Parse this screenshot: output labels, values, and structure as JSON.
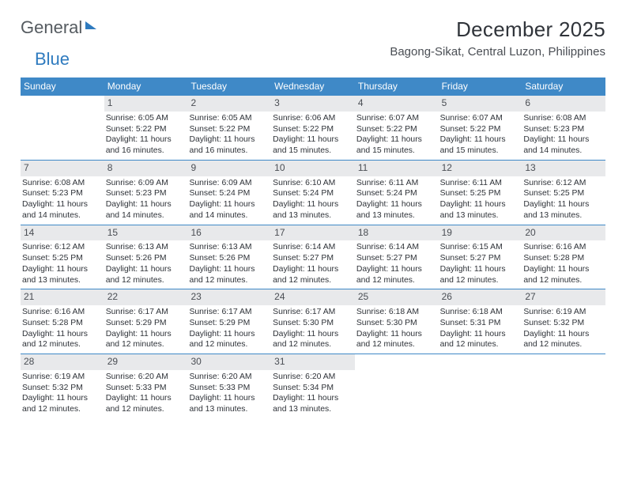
{
  "brand": {
    "word1": "General",
    "word2": "Blue"
  },
  "title": "December 2025",
  "location": "Bagong-Sikat, Central Luzon, Philippines",
  "colors": {
    "header_bg": "#3f89c7",
    "header_text": "#ffffff",
    "daynum_bg": "#e8e9eb",
    "daynum_text": "#4a4e54",
    "body_text": "#2e3238",
    "rule": "#3f89c7",
    "brand_gray": "#555b60",
    "brand_blue": "#2f7bbf",
    "page_bg": "#ffffff"
  },
  "day_names": [
    "Sunday",
    "Monday",
    "Tuesday",
    "Wednesday",
    "Thursday",
    "Friday",
    "Saturday"
  ],
  "weeks": [
    [
      {
        "n": "",
        "sr": "",
        "ss": "",
        "dl": ""
      },
      {
        "n": "1",
        "sr": "Sunrise: 6:05 AM",
        "ss": "Sunset: 5:22 PM",
        "dl": "Daylight: 11 hours and 16 minutes."
      },
      {
        "n": "2",
        "sr": "Sunrise: 6:05 AM",
        "ss": "Sunset: 5:22 PM",
        "dl": "Daylight: 11 hours and 16 minutes."
      },
      {
        "n": "3",
        "sr": "Sunrise: 6:06 AM",
        "ss": "Sunset: 5:22 PM",
        "dl": "Daylight: 11 hours and 15 minutes."
      },
      {
        "n": "4",
        "sr": "Sunrise: 6:07 AM",
        "ss": "Sunset: 5:22 PM",
        "dl": "Daylight: 11 hours and 15 minutes."
      },
      {
        "n": "5",
        "sr": "Sunrise: 6:07 AM",
        "ss": "Sunset: 5:22 PM",
        "dl": "Daylight: 11 hours and 15 minutes."
      },
      {
        "n": "6",
        "sr": "Sunrise: 6:08 AM",
        "ss": "Sunset: 5:23 PM",
        "dl": "Daylight: 11 hours and 14 minutes."
      }
    ],
    [
      {
        "n": "7",
        "sr": "Sunrise: 6:08 AM",
        "ss": "Sunset: 5:23 PM",
        "dl": "Daylight: 11 hours and 14 minutes."
      },
      {
        "n": "8",
        "sr": "Sunrise: 6:09 AM",
        "ss": "Sunset: 5:23 PM",
        "dl": "Daylight: 11 hours and 14 minutes."
      },
      {
        "n": "9",
        "sr": "Sunrise: 6:09 AM",
        "ss": "Sunset: 5:24 PM",
        "dl": "Daylight: 11 hours and 14 minutes."
      },
      {
        "n": "10",
        "sr": "Sunrise: 6:10 AM",
        "ss": "Sunset: 5:24 PM",
        "dl": "Daylight: 11 hours and 13 minutes."
      },
      {
        "n": "11",
        "sr": "Sunrise: 6:11 AM",
        "ss": "Sunset: 5:24 PM",
        "dl": "Daylight: 11 hours and 13 minutes."
      },
      {
        "n": "12",
        "sr": "Sunrise: 6:11 AM",
        "ss": "Sunset: 5:25 PM",
        "dl": "Daylight: 11 hours and 13 minutes."
      },
      {
        "n": "13",
        "sr": "Sunrise: 6:12 AM",
        "ss": "Sunset: 5:25 PM",
        "dl": "Daylight: 11 hours and 13 minutes."
      }
    ],
    [
      {
        "n": "14",
        "sr": "Sunrise: 6:12 AM",
        "ss": "Sunset: 5:25 PM",
        "dl": "Daylight: 11 hours and 13 minutes."
      },
      {
        "n": "15",
        "sr": "Sunrise: 6:13 AM",
        "ss": "Sunset: 5:26 PM",
        "dl": "Daylight: 11 hours and 12 minutes."
      },
      {
        "n": "16",
        "sr": "Sunrise: 6:13 AM",
        "ss": "Sunset: 5:26 PM",
        "dl": "Daylight: 11 hours and 12 minutes."
      },
      {
        "n": "17",
        "sr": "Sunrise: 6:14 AM",
        "ss": "Sunset: 5:27 PM",
        "dl": "Daylight: 11 hours and 12 minutes."
      },
      {
        "n": "18",
        "sr": "Sunrise: 6:14 AM",
        "ss": "Sunset: 5:27 PM",
        "dl": "Daylight: 11 hours and 12 minutes."
      },
      {
        "n": "19",
        "sr": "Sunrise: 6:15 AM",
        "ss": "Sunset: 5:27 PM",
        "dl": "Daylight: 11 hours and 12 minutes."
      },
      {
        "n": "20",
        "sr": "Sunrise: 6:16 AM",
        "ss": "Sunset: 5:28 PM",
        "dl": "Daylight: 11 hours and 12 minutes."
      }
    ],
    [
      {
        "n": "21",
        "sr": "Sunrise: 6:16 AM",
        "ss": "Sunset: 5:28 PM",
        "dl": "Daylight: 11 hours and 12 minutes."
      },
      {
        "n": "22",
        "sr": "Sunrise: 6:17 AM",
        "ss": "Sunset: 5:29 PM",
        "dl": "Daylight: 11 hours and 12 minutes."
      },
      {
        "n": "23",
        "sr": "Sunrise: 6:17 AM",
        "ss": "Sunset: 5:29 PM",
        "dl": "Daylight: 11 hours and 12 minutes."
      },
      {
        "n": "24",
        "sr": "Sunrise: 6:17 AM",
        "ss": "Sunset: 5:30 PM",
        "dl": "Daylight: 11 hours and 12 minutes."
      },
      {
        "n": "25",
        "sr": "Sunrise: 6:18 AM",
        "ss": "Sunset: 5:30 PM",
        "dl": "Daylight: 11 hours and 12 minutes."
      },
      {
        "n": "26",
        "sr": "Sunrise: 6:18 AM",
        "ss": "Sunset: 5:31 PM",
        "dl": "Daylight: 11 hours and 12 minutes."
      },
      {
        "n": "27",
        "sr": "Sunrise: 6:19 AM",
        "ss": "Sunset: 5:32 PM",
        "dl": "Daylight: 11 hours and 12 minutes."
      }
    ],
    [
      {
        "n": "28",
        "sr": "Sunrise: 6:19 AM",
        "ss": "Sunset: 5:32 PM",
        "dl": "Daylight: 11 hours and 12 minutes."
      },
      {
        "n": "29",
        "sr": "Sunrise: 6:20 AM",
        "ss": "Sunset: 5:33 PM",
        "dl": "Daylight: 11 hours and 12 minutes."
      },
      {
        "n": "30",
        "sr": "Sunrise: 6:20 AM",
        "ss": "Sunset: 5:33 PM",
        "dl": "Daylight: 11 hours and 13 minutes."
      },
      {
        "n": "31",
        "sr": "Sunrise: 6:20 AM",
        "ss": "Sunset: 5:34 PM",
        "dl": "Daylight: 11 hours and 13 minutes."
      },
      {
        "n": "",
        "sr": "",
        "ss": "",
        "dl": ""
      },
      {
        "n": "",
        "sr": "",
        "ss": "",
        "dl": ""
      },
      {
        "n": "",
        "sr": "",
        "ss": "",
        "dl": ""
      }
    ]
  ]
}
